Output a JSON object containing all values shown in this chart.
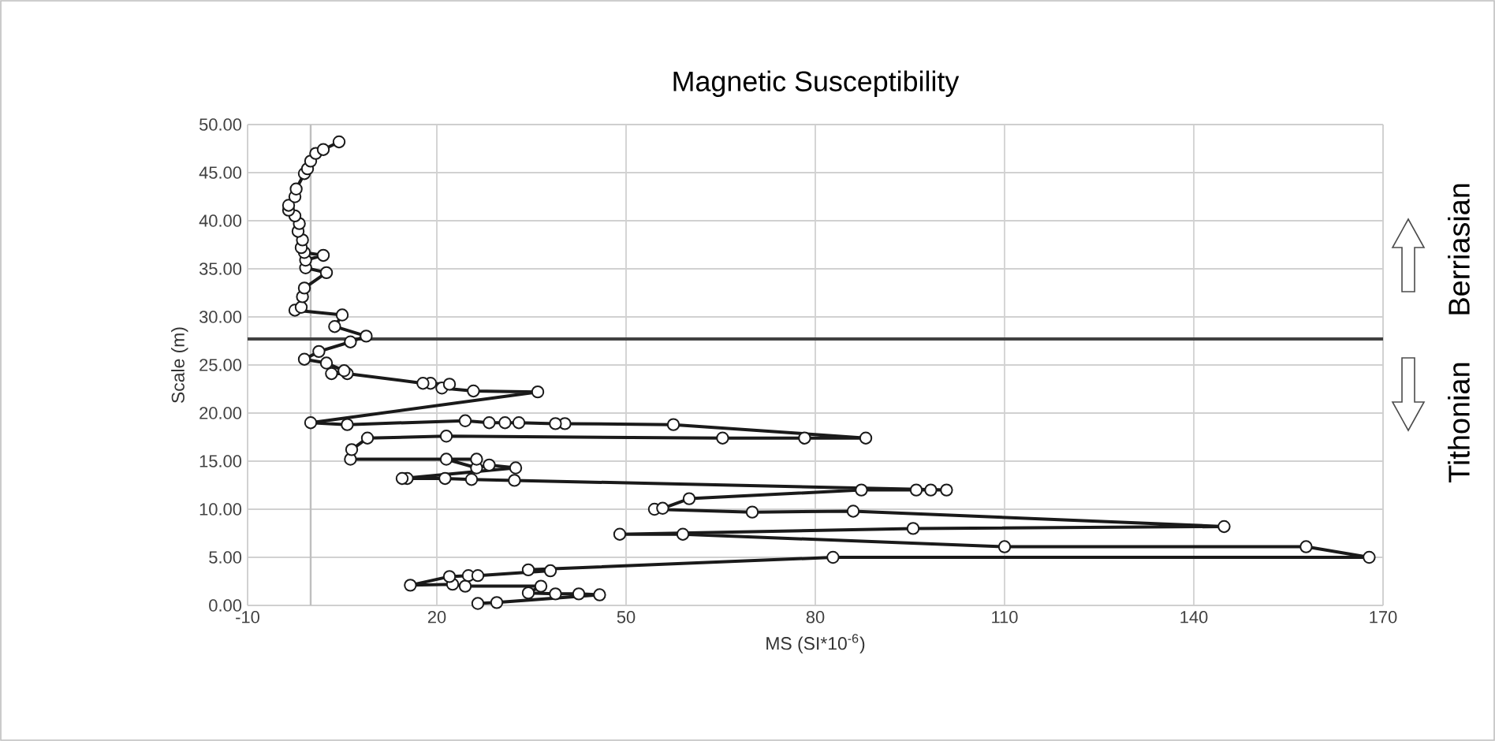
{
  "chart_data": {
    "type": "line",
    "title": "Magnetic Susceptibility",
    "xlabel": "MS (SI*10$^{-6}$)",
    "ylabel": "Scale (m)",
    "annotations": [
      "Tithonian",
      "Berriasian"
    ],
    "xlim": [
      -10,
      170
    ],
    "xticks": [
      -10,
      20,
      50,
      80,
      110,
      140,
      170
    ],
    "ylim": [
      0,
      50
    ],
    "yticks": [
      {
        "value": 0,
        "label": "0.00"
      },
      {
        "value": 5,
        "label": "5.00"
      },
      {
        "value": 10,
        "label": "10.00"
      },
      {
        "value": 15,
        "label": "15.00"
      },
      {
        "value": 20,
        "label": "20.00"
      },
      {
        "value": 25,
        "label": "25.00"
      },
      {
        "value": 30,
        "label": "30.00"
      },
      {
        "value": 35,
        "label": "35.00"
      },
      {
        "value": 40,
        "label": "40.00"
      },
      {
        "value": 45,
        "label": "45.00"
      },
      {
        "value": 50,
        "label": "50.00"
      }
    ],
    "grid": true,
    "marker": "circle",
    "line_style": "solid",
    "ref_lines": [
      {
        "axis": "x",
        "value": 0,
        "color": "#bfbfbf"
      },
      {
        "axis": "y",
        "value": 27.7,
        "color": "#404040"
      }
    ],
    "series": [
      {
        "color": "#1a1a1a",
        "x": [
          26.5,
          29.5,
          45.8,
          42.5,
          38.8,
          34.5,
          36.5,
          24.5,
          22.5,
          15.8,
          22,
          25,
          26.5,
          38,
          34.5,
          82.8,
          167.8,
          157.8,
          110,
          59,
          49,
          95.5,
          144.8,
          86,
          70,
          54.5,
          55.8,
          60,
          87.3,
          96,
          98.3,
          100.8,
          32.3,
          25.5,
          21.3,
          15.3,
          14.5,
          32.5,
          28.3,
          26.3,
          21.5,
          26.3,
          6.3,
          6.5,
          9,
          21.5,
          65.3,
          78.3,
          88,
          57.5,
          40.3,
          38.8,
          33,
          30.8,
          28.3,
          24.5,
          5.8,
          0,
          36,
          25.8,
          20.8,
          22,
          19,
          17.8,
          5.8,
          3.3,
          5.3,
          2.5,
          -1,
          1.3,
          6.3,
          8.8,
          3.8,
          5,
          -2.5,
          -1.5,
          -1.3,
          -1,
          2.5,
          -0.8,
          -0.8,
          2,
          -1,
          -1.5,
          -1.3,
          -2,
          -1.8,
          -2.5,
          -3.5,
          -3.5,
          -2.5,
          -2.3,
          -1,
          -0.5,
          0,
          0.8,
          2,
          4.5
        ],
        "values": [
          0.2,
          0.3,
          1.1,
          1.2,
          1.2,
          1.3,
          2.0,
          2.0,
          2.2,
          2.1,
          3.0,
          3.1,
          3.1,
          3.6,
          3.7,
          5.0,
          5.0,
          6.1,
          6.1,
          7.4,
          7.4,
          8.0,
          8.2,
          9.8,
          9.7,
          10.0,
          10.1,
          11.1,
          12.0,
          12.0,
          12.0,
          12.0,
          13.0,
          13.1,
          13.2,
          13.2,
          13.2,
          14.3,
          14.6,
          14.3,
          15.2,
          15.2,
          15.2,
          16.2,
          17.4,
          17.6,
          17.4,
          17.4,
          17.4,
          18.8,
          18.9,
          18.9,
          19.0,
          19.0,
          19.0,
          19.2,
          18.8,
          19.0,
          22.2,
          22.3,
          22.6,
          23.0,
          23.1,
          23.1,
          24.1,
          24.1,
          24.4,
          25.2,
          25.6,
          26.4,
          27.4,
          28.0,
          29.0,
          30.2,
          30.7,
          31.0,
          32.1,
          33.0,
          34.6,
          35.1,
          35.9,
          36.4,
          36.7,
          37.2,
          38.0,
          38.9,
          39.7,
          40.5,
          41.1,
          41.6,
          42.5,
          43.3,
          44.9,
          45.4,
          46.2,
          47.0,
          47.4,
          48.2
        ]
      }
    ]
  }
}
